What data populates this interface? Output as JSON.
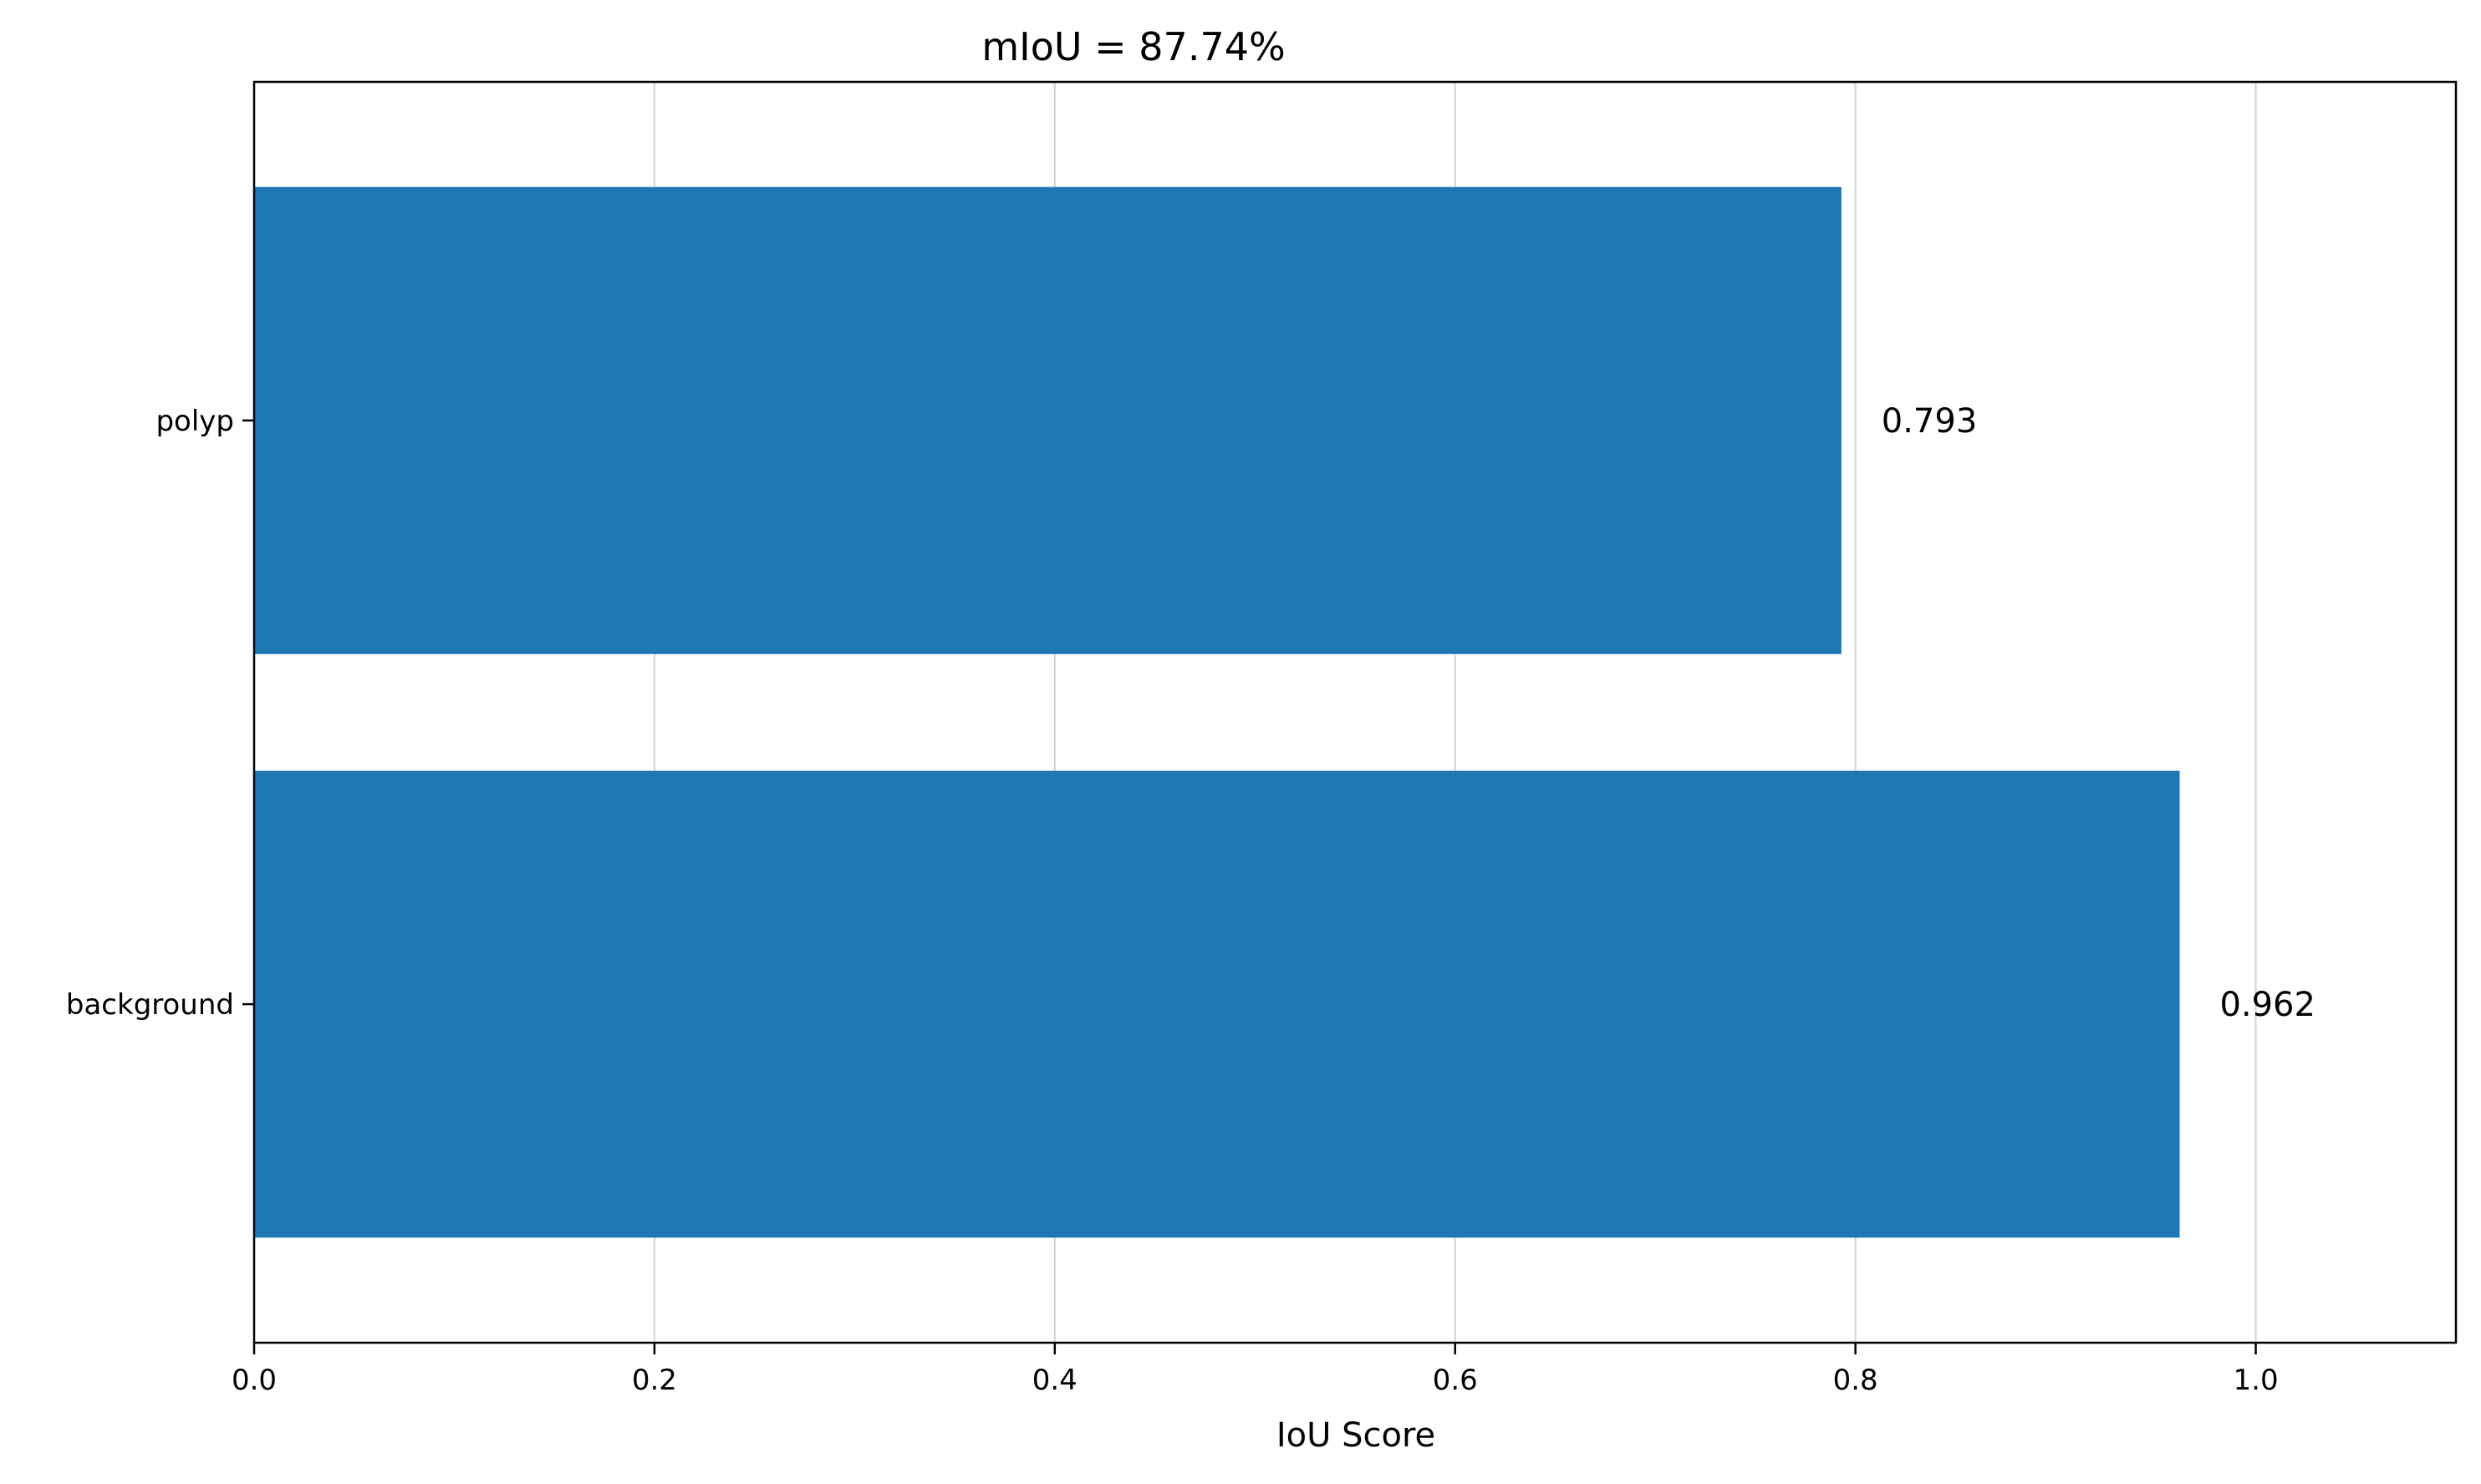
{
  "chart_data": {
    "type": "bar",
    "orientation": "horizontal",
    "title": "mIoU = 87.74%",
    "xlabel": "IoU Score",
    "ylabel": "",
    "categories": [
      "background",
      "polyp"
    ],
    "values": [
      0.962,
      0.793
    ],
    "value_labels": [
      "0.962",
      "0.793"
    ],
    "xlim": [
      0,
      1.1
    ],
    "xticks": [
      0.0,
      0.2,
      0.4,
      0.6,
      0.8,
      1.0
    ],
    "xtick_labels": [
      "0.0",
      "0.2",
      "0.4",
      "0.6",
      "0.8",
      "1.0"
    ],
    "grid": "vertical",
    "legend": "none",
    "colors": {
      "bar": "#1f77b4",
      "grid": "#d3d3d3",
      "axis": "#000000"
    }
  }
}
